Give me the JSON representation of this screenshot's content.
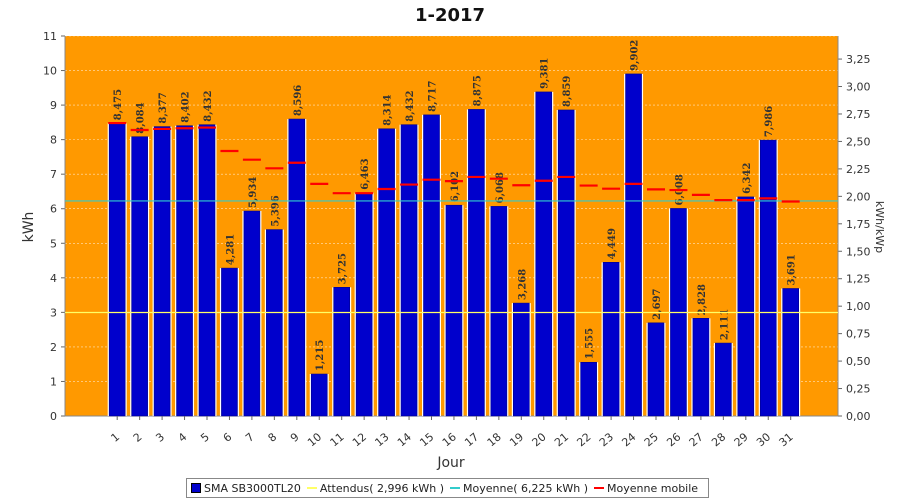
{
  "chart_data": {
    "type": "bar",
    "title": "1-2017",
    "xlabel": "Jour",
    "ylabel": "kWh",
    "ylabel_right": "kWh/kWp",
    "ylim": [
      0,
      11
    ],
    "y_ticks": [
      "0",
      "1",
      "2",
      "3",
      "4",
      "5",
      "6",
      "7",
      "8",
      "9",
      "10",
      "11"
    ],
    "ylim_right": [
      0,
      3.46
    ],
    "y_ticks_right": [
      "0,00",
      "0,25",
      "0,50",
      "0,75",
      "1,00",
      "1,25",
      "1,50",
      "1,75",
      "2,00",
      "2,25",
      "2,50",
      "2,75",
      "3,00",
      "3,25"
    ],
    "categories": [
      "1",
      "2",
      "3",
      "4",
      "5",
      "6",
      "7",
      "8",
      "9",
      "10",
      "11",
      "12",
      "13",
      "14",
      "15",
      "16",
      "17",
      "18",
      "19",
      "20",
      "21",
      "22",
      "23",
      "24",
      "25",
      "26",
      "27",
      "28",
      "29",
      "30",
      "31"
    ],
    "series": [
      {
        "name": "SMA SB3000TL20",
        "values": [
          8.475,
          8.084,
          8.377,
          8.402,
          8.432,
          4.281,
          5.934,
          5.396,
          8.596,
          1.215,
          3.725,
          6.463,
          8.314,
          8.432,
          8.717,
          6.102,
          8.875,
          6.068,
          3.268,
          9.381,
          8.859,
          1.555,
          4.449,
          9.902,
          2.697,
          6.008,
          2.828,
          2.111,
          6.342,
          7.986,
          3.691
        ],
        "labels": [
          "8,475",
          "8,084",
          "8,377",
          "8,402",
          "8,432",
          "4,281",
          "5,934",
          "5,396",
          "8,596",
          "1,215",
          "3,725",
          "6,463",
          "8,314",
          "8,432",
          "8,717",
          "6,102",
          "8,875",
          "6,068",
          "3,268",
          "9,381",
          "8,859",
          "1,555",
          "4,449",
          "9,902",
          "2,697",
          "6,008",
          "2,828",
          "2,111",
          "6,342",
          "7,986",
          "3,691"
        ]
      }
    ],
    "expected_value": 2.996,
    "average_value": 6.225,
    "moving_average": [
      8.48,
      8.28,
      8.31,
      8.33,
      8.35,
      7.67,
      7.42,
      7.17,
      7.33,
      6.72,
      6.45,
      6.45,
      6.57,
      6.7,
      6.84,
      6.8,
      6.92,
      6.87,
      6.68,
      6.81,
      6.92,
      6.67,
      6.58,
      6.72,
      6.56,
      6.54,
      6.4,
      6.25,
      6.25,
      6.3,
      6.21
    ],
    "legend": [
      {
        "label": "SMA SB3000TL20",
        "kind": "bar",
        "color": "#0000cc"
      },
      {
        "label": "Attendus( 2,996 kWh )",
        "kind": "line",
        "color": "#ffff66"
      },
      {
        "label": "Moyenne( 6,225 kWh  )",
        "kind": "line",
        "color": "#33cccc"
      },
      {
        "label": "Moyenne mobile",
        "kind": "line",
        "color": "#ff0000"
      }
    ],
    "legend_position": "bottom",
    "grid": true,
    "colors": {
      "plot_background": "#ff9900",
      "bar_fill": "#0000cc",
      "expected_line": "#ffff66",
      "average_line": "#33cccc",
      "moving_average": "#ff0000"
    }
  }
}
